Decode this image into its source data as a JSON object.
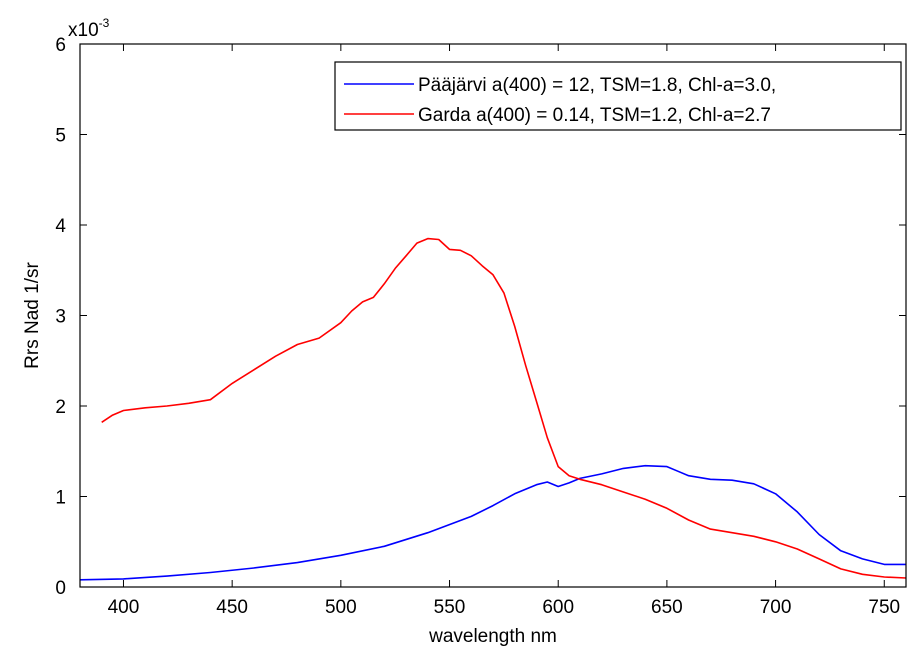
{
  "chart_data": {
    "type": "line",
    "xlabel": "wavelength nm",
    "ylabel": "Rrs Nad  1/sr",
    "xlim": [
      380,
      760
    ],
    "ylim": [
      0,
      0.006
    ],
    "y_exponent_label": {
      "base": "x10",
      "exponent": "-3"
    },
    "x_ticks": [
      400,
      450,
      500,
      550,
      600,
      650,
      700,
      750
    ],
    "y_ticks": [
      0,
      1,
      2,
      3,
      4,
      5,
      6
    ],
    "y_tick_scale": 0.001,
    "grid": false,
    "legend_position": "top-right",
    "series": [
      {
        "name": "Pääjärvi a(400) = 12, TSM=1.8, Chl-a=3.0,",
        "color": "#0000ff",
        "x": [
          380,
          400,
          420,
          440,
          460,
          480,
          500,
          520,
          540,
          560,
          570,
          580,
          590,
          595,
          600,
          605,
          610,
          620,
          630,
          640,
          650,
          655,
          660,
          670,
          680,
          690,
          700,
          710,
          720,
          730,
          740,
          750,
          760
        ],
        "y": [
          8e-05,
          9e-05,
          0.00012,
          0.00016,
          0.00021,
          0.00027,
          0.00035,
          0.00045,
          0.0006,
          0.00078,
          0.0009,
          0.00103,
          0.00113,
          0.00116,
          0.00111,
          0.00115,
          0.0012,
          0.00125,
          0.00131,
          0.00134,
          0.00133,
          0.00128,
          0.00123,
          0.00119,
          0.00118,
          0.00114,
          0.00103,
          0.00083,
          0.00058,
          0.0004,
          0.00031,
          0.00025,
          0.00025
        ]
      },
      {
        "name": "Garda  a(400) = 0.14, TSM=1.2, Chl-a=2.7",
        "color": "#ff0000",
        "x": [
          390,
          395,
          400,
          410,
          420,
          430,
          440,
          450,
          460,
          470,
          480,
          490,
          500,
          505,
          510,
          515,
          520,
          525,
          530,
          535,
          540,
          545,
          550,
          555,
          560,
          565,
          570,
          575,
          580,
          585,
          590,
          595,
          600,
          605,
          610,
          620,
          630,
          640,
          650,
          660,
          670,
          680,
          690,
          700,
          710,
          720,
          730,
          740,
          750,
          760
        ],
        "y": [
          0.00182,
          0.0019,
          0.00195,
          0.00198,
          0.002,
          0.00203,
          0.00207,
          0.00225,
          0.0024,
          0.00255,
          0.00268,
          0.00275,
          0.00292,
          0.00305,
          0.00315,
          0.0032,
          0.00335,
          0.00352,
          0.00366,
          0.0038,
          0.00385,
          0.00384,
          0.00373,
          0.00372,
          0.00366,
          0.00355,
          0.00345,
          0.00325,
          0.00288,
          0.00245,
          0.00205,
          0.00165,
          0.00133,
          0.00123,
          0.00119,
          0.00113,
          0.00105,
          0.00097,
          0.00087,
          0.00074,
          0.00064,
          0.0006,
          0.00056,
          0.0005,
          0.00042,
          0.00031,
          0.0002,
          0.00014,
          0.00011,
          0.0001
        ]
      }
    ]
  }
}
